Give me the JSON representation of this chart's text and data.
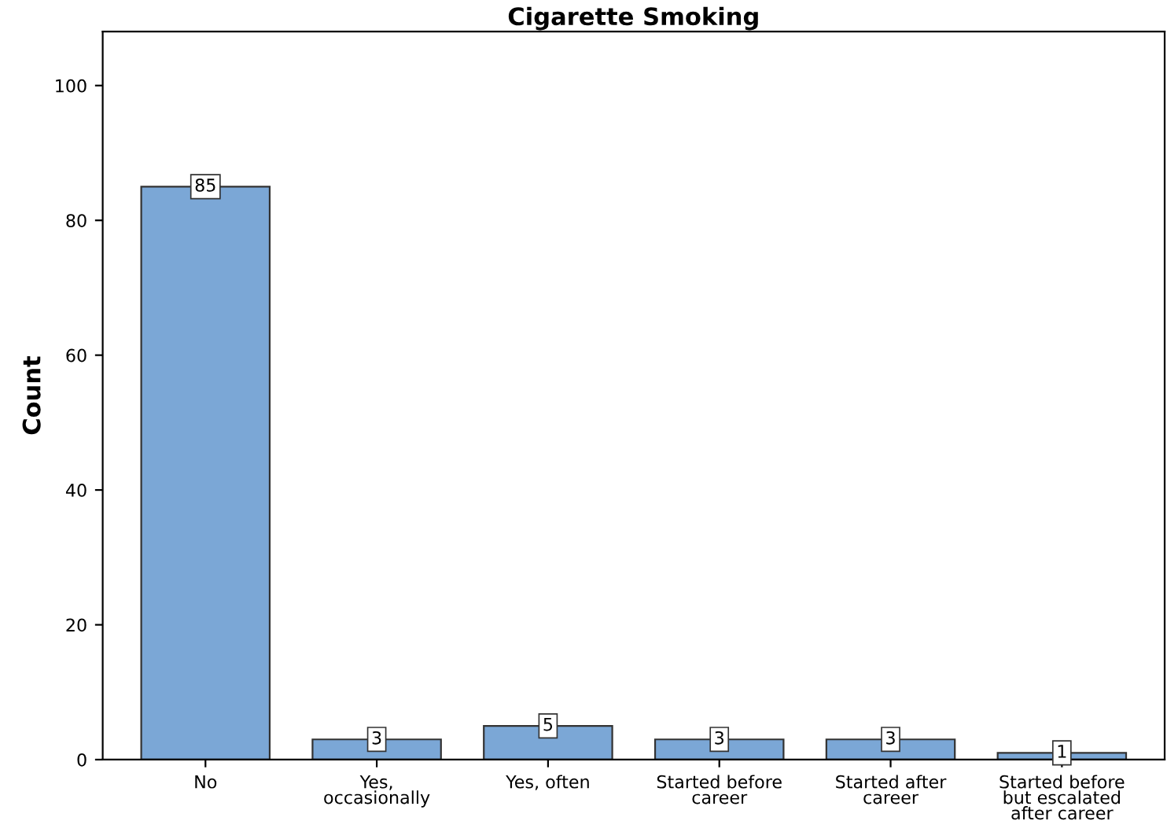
{
  "chart_data": {
    "type": "bar",
    "title": "Cigarette Smoking",
    "ylabel": "Count",
    "categories": [
      "No",
      "Yes,\noccasionally",
      "Yes, often",
      "Started before\ncareer",
      "Started after\ncareer",
      "Started before\nbut escalated\nafter career"
    ],
    "values": [
      85,
      3,
      5,
      3,
      3,
      1
    ],
    "color": "#7ba7d6",
    "ylim": [
      0,
      108
    ],
    "yticks": [
      0,
      20,
      40,
      60,
      80,
      100
    ],
    "data_labels": true,
    "grid": false,
    "legend": false
  }
}
